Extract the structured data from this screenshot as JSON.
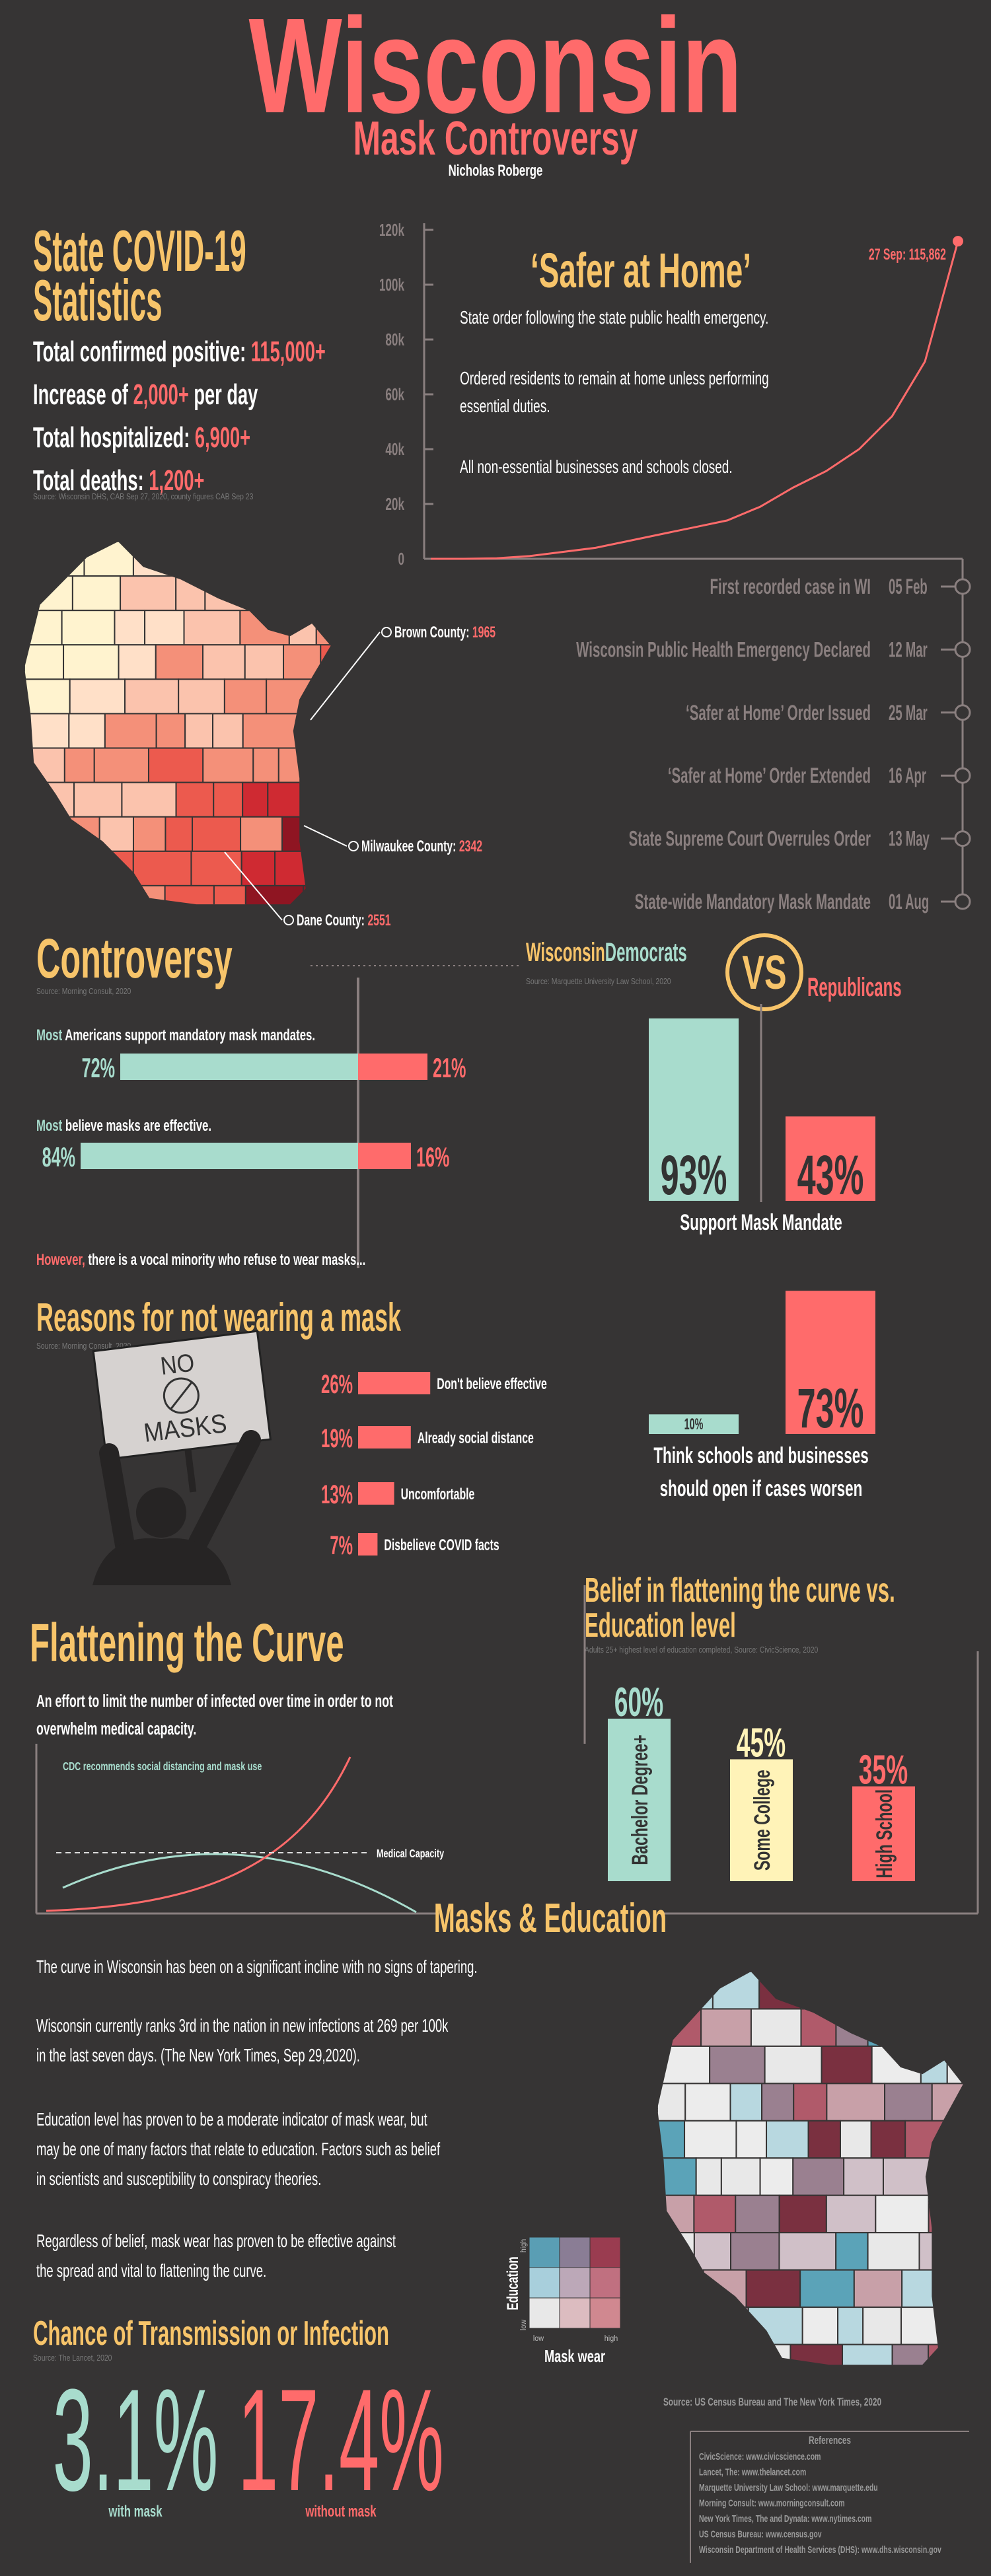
{
  "header": {
    "title": "Wisconsin",
    "subtitle": "Mask Controversy",
    "author": "Nicholas Roberge"
  },
  "stats": {
    "title": [
      "State COVID-19",
      "Statistics"
    ],
    "items": [
      {
        "text": "Total confirmed positive: ",
        "figure": "115,000+"
      },
      {
        "text": "Increase of ",
        "figure": "2,000+",
        "after": " per day"
      },
      {
        "text": "Total hospitalized: ",
        "figure": "6,900+"
      },
      {
        "text": "Total deaths: ",
        "figure": "1,200+"
      }
    ],
    "source": "Source: Wisconsin DHS, CAB Sep 27, 2020, county figures CAB Sep 23"
  },
  "cases_chart": {
    "type": "line",
    "values": [
      0,
      0,
      200,
      1000,
      2500,
      4000,
      6500,
      9000,
      11500,
      14000,
      19000,
      26000,
      32000,
      40000,
      52000,
      72000,
      115862
    ],
    "color": "#ff6b6b",
    "ylim": [
      0,
      120000
    ],
    "yticks": [
      0,
      {
        "value": 20000,
        "label": "20k"
      },
      {
        "value": 40000,
        "label": "40k"
      },
      {
        "value": 60000,
        "label": "60k"
      },
      {
        "value": 80000,
        "label": "80k"
      },
      {
        "value": 100000,
        "label": "100k"
      },
      {
        "value": 120000,
        "label": "120k"
      }
    ],
    "end_label": "27 Sep: 115,862"
  },
  "safer_at_home": {
    "title": "‘Safer at Home’",
    "paragraphs": [
      [
        "State order following the state public health emergency."
      ],
      [
        "Ordered residents to remain at home unless performing",
        "essential duties."
      ],
      [
        "All non-essential businesses and schools closed."
      ]
    ]
  },
  "timeline": [
    {
      "event": "First recorded case in WI",
      "date": "05 Feb"
    },
    {
      "event": "Wisconsin Public Health Emergency Declared",
      "date": "12 Mar"
    },
    {
      "event": "‘Safer at Home’ Order Issued",
      "date": "25 Mar"
    },
    {
      "event": "‘Safer at Home’ Order Extended",
      "date": "16 Apr"
    },
    {
      "event": "State Supreme Court Overrules Order",
      "date": "13 May"
    },
    {
      "event": "State-wide Mandatory Mask Mandate",
      "date": "01 Aug"
    }
  ],
  "county_map": {
    "callouts": [
      {
        "name": "Brown County: ",
        "cases": 1965
      },
      {
        "name": "Milwaukee County: ",
        "cases": 2342
      },
      {
        "name": "Dane County: ",
        "cases": 2551
      }
    ]
  },
  "controversy": {
    "title": "Controversy",
    "source": "Source: Morning Consult, 2020",
    "findings": [
      {
        "lead": "Most",
        "text": " Americans support mandatory mask mandates.",
        "values": [
          72,
          21
        ],
        "value_labels": [
          "72%",
          "21%"
        ]
      },
      {
        "lead": "Most",
        "text": " believe masks are effective.",
        "values": [
          84,
          16
        ],
        "value_labels": [
          "84%",
          "16%"
        ]
      }
    ],
    "colors": [
      "#a8dccd",
      "#ff6b6b"
    ],
    "note": {
      "lead": "However,",
      "text": " there is a vocal minority who refuse to wear masks..."
    }
  },
  "partisan": {
    "type": "bar",
    "state": "Wisconsin",
    "vs": "VS",
    "source": "Source: Marquette University Law School, 2020",
    "categories": [
      [
        "Support Mask Mandate"
      ],
      [
        "Think schools and businesses",
        "should open if cases worsen"
      ]
    ],
    "series": [
      {
        "name": "Democrats",
        "color": "#a8dccd",
        "values": [
          93,
          10
        ],
        "value_labels": [
          "93%",
          "10%"
        ]
      },
      {
        "name": "Republicans",
        "color": "#ff6b6b",
        "values": [
          43,
          73
        ],
        "value_labels": [
          "43%",
          "73%"
        ]
      }
    ]
  },
  "reasons": {
    "type": "bar",
    "title": "Reasons for not wearing a mask",
    "source": "Source: Morning Consult, 2020",
    "categories": [
      "Don't believe effective",
      "Already social distance",
      "Uncomfortable",
      "Disbelieve COVID facts"
    ],
    "values": [
      26,
      19,
      13,
      7
    ],
    "value_labels": [
      "26%",
      "19%",
      "13%",
      "7%"
    ],
    "color": "#ff6b6b",
    "sign": [
      "NO",
      "MASKS"
    ]
  },
  "flattening": {
    "title": "Flattening the Curve",
    "text": [
      "An effort to limit the number of infected over time in order to not",
      "overwhelm medical capacity."
    ],
    "annotations": [
      "CDC recommends social distancing and mask use",
      "Medical Capacity"
    ]
  },
  "education_chart": {
    "type": "bar",
    "title": [
      "Belief in flattening the curve vs.",
      "Education level"
    ],
    "source": "Adults 25+ highest level of education completed, Source: CivicScience, 2020",
    "categories": [
      "Bachelor Degree+",
      "Some College",
      "High School"
    ],
    "values": [
      60,
      45,
      35
    ],
    "value_labels": [
      "60%",
      "45%",
      "35%"
    ],
    "colors": [
      "#a8dccd",
      "#fff3b8",
      "#ff6b6b"
    ]
  },
  "masks_education": {
    "title": "Masks & Education",
    "paragraphs": [
      [
        "The curve in Wisconsin has been on a significant incline with no signs of tapering."
      ],
      [
        "Wisconsin currently ranks 3rd in the nation in new infections at 269 per 100k",
        "in the last seven days. (The New York Times, Sep 29,2020)."
      ],
      [
        "Education level has proven to be a moderate indicator of mask wear, but",
        "may be one of many factors that relate to education. Factors such as belief",
        "in scientists and susceptibility to conspiracy theories."
      ],
      [
        "Regardless of belief, mask wear has proven to be effective against",
        "the spread and vital to flattening the curve."
      ]
    ],
    "legend": {
      "y_label": "Education",
      "x_label": "Mask wear",
      "low": "low",
      "high": "high"
    },
    "source": "Source: US Census Bureau and The New York Times, 2020"
  },
  "transmission": {
    "title": "Chance of Transmission or Infection",
    "source": "Source: The Lancet, 2020",
    "items": [
      {
        "figure": "3.1%",
        "label": "with mask",
        "color": "#a8dccd"
      },
      {
        "figure": "17.4%",
        "label": "without mask",
        "color": "#ff6b6b"
      }
    ]
  },
  "references": {
    "title": "References",
    "items": [
      "CivicScience: www.civicscience.com",
      "Lancet, The: www.thelancet.com",
      "Marquette University Law School: www.marquette.edu",
      "Morning Consult: www.morningconsult.com",
      "New York Times, The and Dynata: www.nytimes.com",
      "US Census Bureau: www.census.gov",
      "Wisconsin Department of Health Services (DHS): www.dhs.wisconsin.gov"
    ]
  }
}
